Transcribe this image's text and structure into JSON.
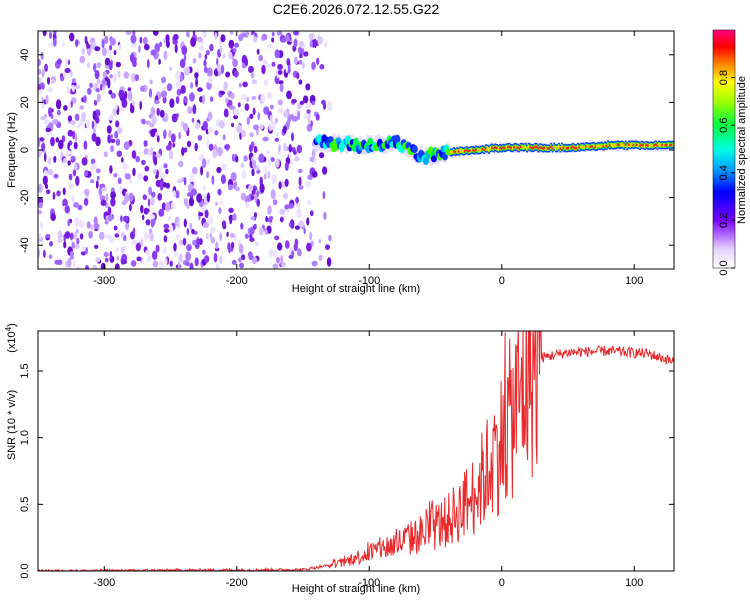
{
  "chart_data": [
    {
      "type": "heatmap",
      "title": "C2E6.2026.072.12.55.G22",
      "xlabel": "Height of straight line (km)",
      "ylabel": "Frequency (Hz)",
      "xlim": [
        -350,
        130
      ],
      "ylim": [
        -50,
        50
      ],
      "xticks": [
        -300,
        -200,
        -100,
        0,
        100
      ],
      "yticks": [
        -40,
        -20,
        0,
        20,
        40
      ],
      "noise_region_x": [
        -350,
        -140
      ],
      "ridge": {
        "x": [
          -140,
          -120,
          -100,
          -80,
          -60,
          -40,
          -20,
          0,
          20,
          50,
          80,
          100,
          130
        ],
        "freq": [
          3,
          2.5,
          2,
          3,
          -3,
          -1,
          0,
          1,
          1,
          1,
          2,
          2,
          2
        ]
      },
      "colorbar": {
        "label": "Normalized spectral amplitude",
        "ticks": [
          "0.0",
          "0.2",
          "0.4",
          "0.6",
          "0.8"
        ],
        "range": [
          0,
          1
        ]
      }
    },
    {
      "type": "line",
      "xlabel": "Height of straight line (km)",
      "ylabel": "SNR (10 * v/v)",
      "y_scale_label": "(x10",
      "y_scale_exp": "4",
      "xlim": [
        -350,
        130
      ],
      "ylim": [
        0,
        1.8
      ],
      "xticks": [
        -300,
        -200,
        -100,
        0,
        100
      ],
      "yticks": [
        "0.0",
        "0.5",
        "1.0",
        "1.5"
      ],
      "series": [
        {
          "name": "SNR",
          "color": "#e8282b",
          "x": [
            -350,
            -150,
            -120,
            -100,
            -80,
            -60,
            -40,
            -20,
            -10,
            0,
            10,
            20,
            30,
            50,
            80,
            110,
            130
          ],
          "values": [
            0.0,
            0.01,
            0.06,
            0.14,
            0.2,
            0.28,
            0.38,
            0.58,
            0.78,
            0.98,
            1.22,
            1.45,
            1.6,
            1.64,
            1.65,
            1.63,
            1.57
          ]
        }
      ]
    }
  ]
}
